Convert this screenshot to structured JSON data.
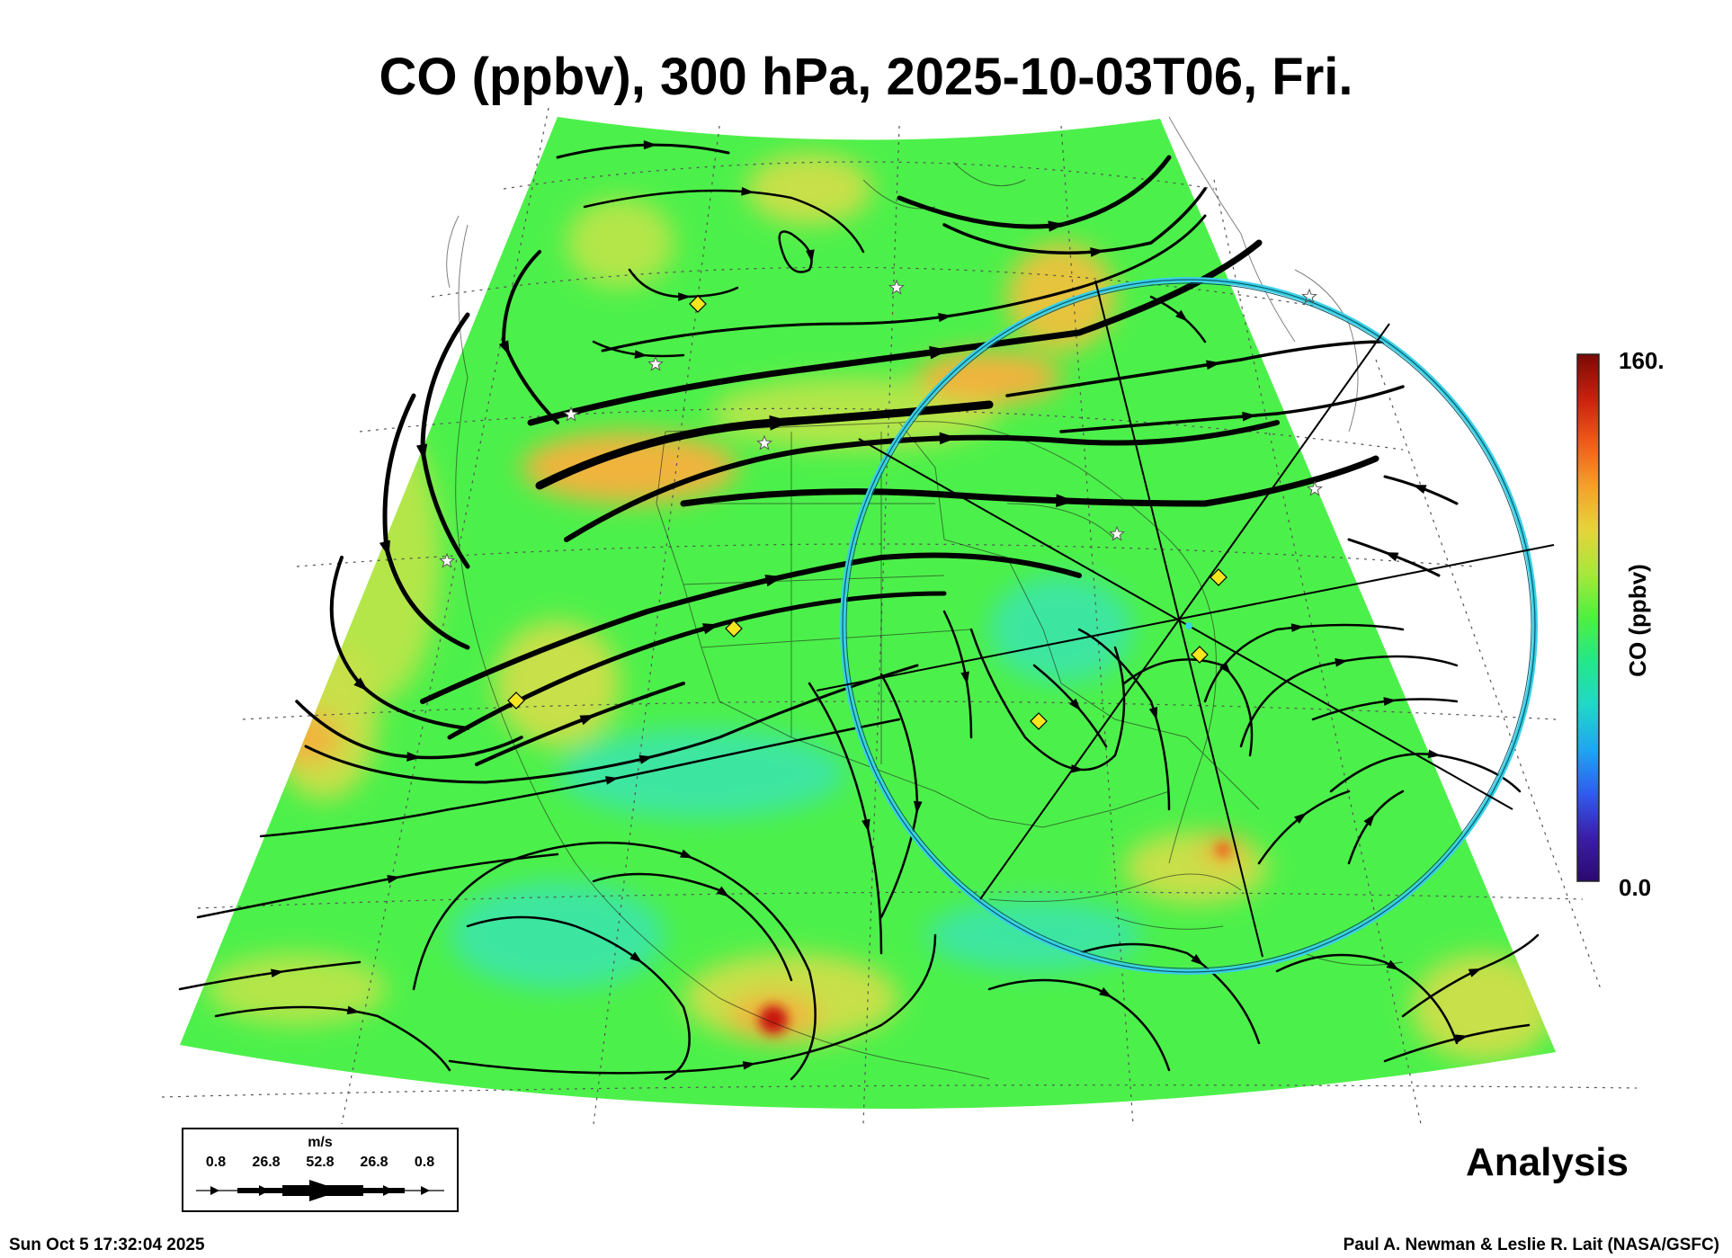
{
  "title": "CO (ppbv), 300 hPa, 2025-10-03T06, Fri.",
  "run_label": "Analysis",
  "footer": {
    "timestamp": "Sun Oct  5 17:32:04 2025",
    "credit": "Paul A. Newman & Leslie R. Lait (NASA/GSFC)"
  },
  "colorbar": {
    "max_label": "160.",
    "min_label": "0.0",
    "title": "CO (ppbv)",
    "min": 0,
    "max": 160,
    "colors": [
      "#2a0a6e",
      "#3b1ea8",
      "#2f5cf0",
      "#1fa6f0",
      "#1fd8c8",
      "#22e88a",
      "#4ef040",
      "#a6e83a",
      "#e6d43a",
      "#f5a02a",
      "#f05a1a",
      "#c8200e",
      "#7a0a06"
    ]
  },
  "wind_legend": {
    "unit": "m/s",
    "labels": [
      "0.8",
      "26.8",
      "52.8",
      "26.8",
      "0.8"
    ]
  },
  "map_colors": {
    "background_field": "#4cf04a",
    "enhanced_co": "#b4e64a",
    "high_co": "#f0b43c",
    "peak_co": "#c8140a",
    "low_co": "#3ee6a0",
    "streamline": "#000000",
    "trajectory_ring": "#3ad0e6",
    "station_marker": "#f5e61e"
  },
  "markers": {
    "station_icon": "diamond-icon",
    "site_icon": "star-icon"
  }
}
